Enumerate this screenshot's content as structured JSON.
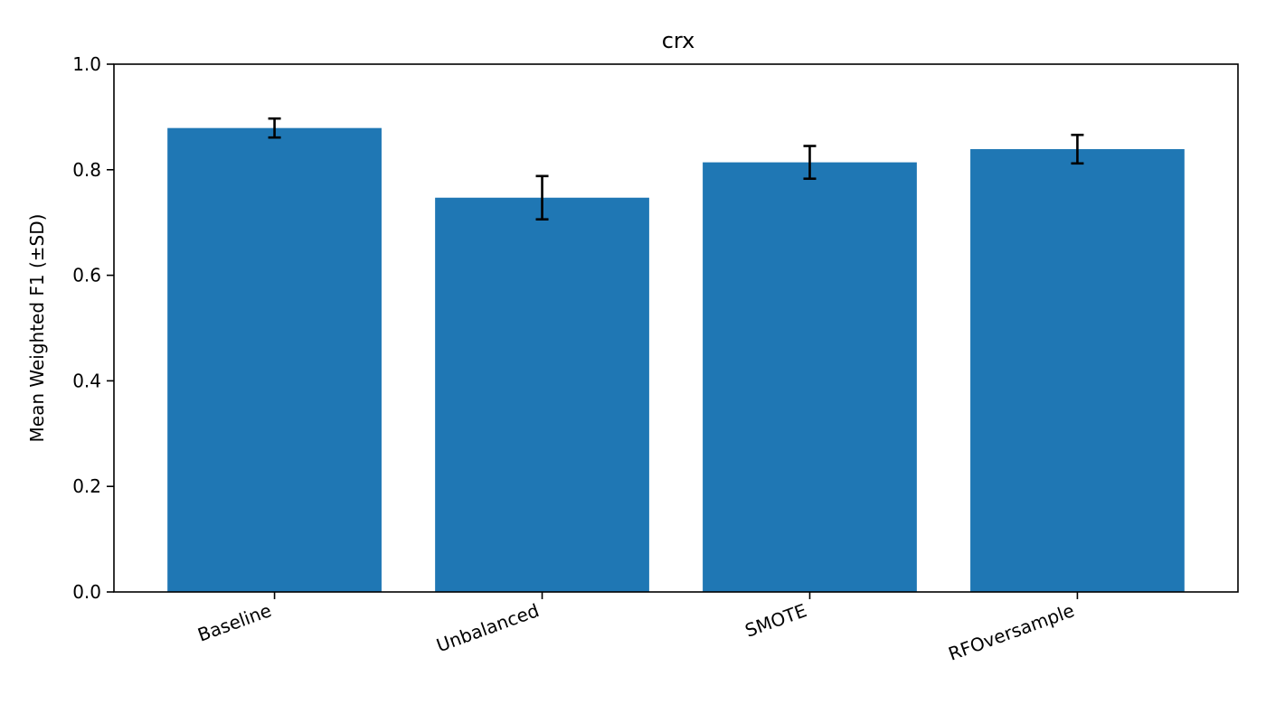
{
  "chart_data": {
    "type": "bar",
    "title": "crx",
    "xlabel": "",
    "ylabel": "Mean Weighted F1 (±SD)",
    "categories": [
      "Baseline",
      "Unbalanced",
      "SMOTE",
      "RFOversample"
    ],
    "values": [
      0.879,
      0.747,
      0.814,
      0.839
    ],
    "errors": [
      0.018,
      0.041,
      0.031,
      0.027
    ],
    "ylim": [
      0,
      1.0
    ],
    "yticks": [
      "0.0",
      "0.2",
      "0.4",
      "0.6",
      "0.8",
      "1.0"
    ],
    "grid": false,
    "legend": "none",
    "colors": {
      "bar": "#1f77b4",
      "error": "#000000",
      "axis": "#000000"
    }
  }
}
